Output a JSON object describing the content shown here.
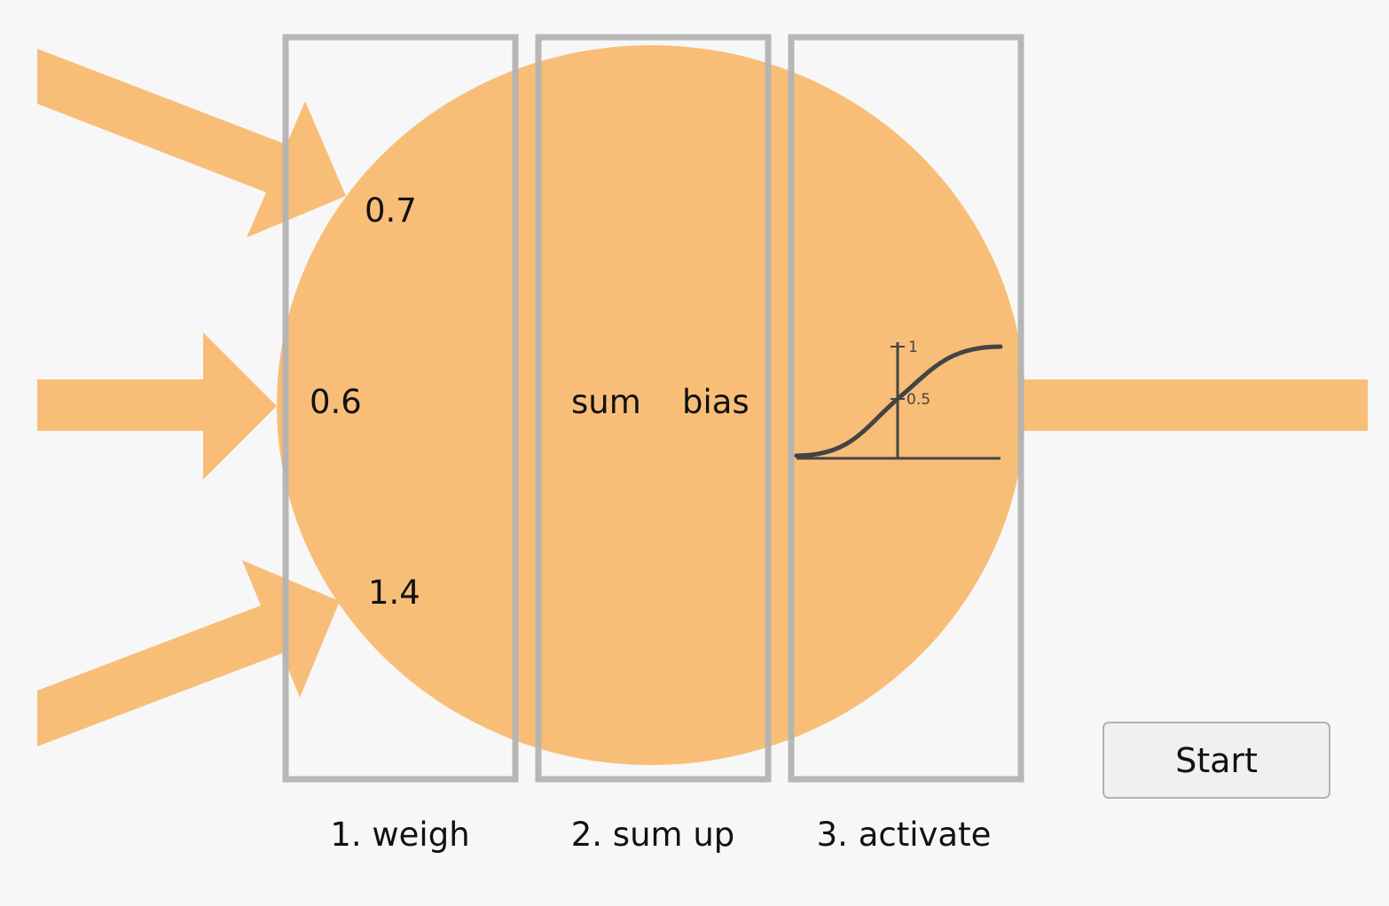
{
  "colors": {
    "neuron": "#f8be78",
    "stage_border": "#b3b3b3",
    "background": "#f7f7f7",
    "curve": "#444444"
  },
  "weights": {
    "top": "0.7",
    "middle": "0.6",
    "bottom": "1.4"
  },
  "sum_label": "sum",
  "bias_label": "bias",
  "activation": {
    "tick_high": "1",
    "tick_mid": "0.5"
  },
  "stages": {
    "weigh": "1. weigh",
    "sum_up": "2. sum up",
    "activate": "3. activate"
  },
  "start_button": "Start"
}
